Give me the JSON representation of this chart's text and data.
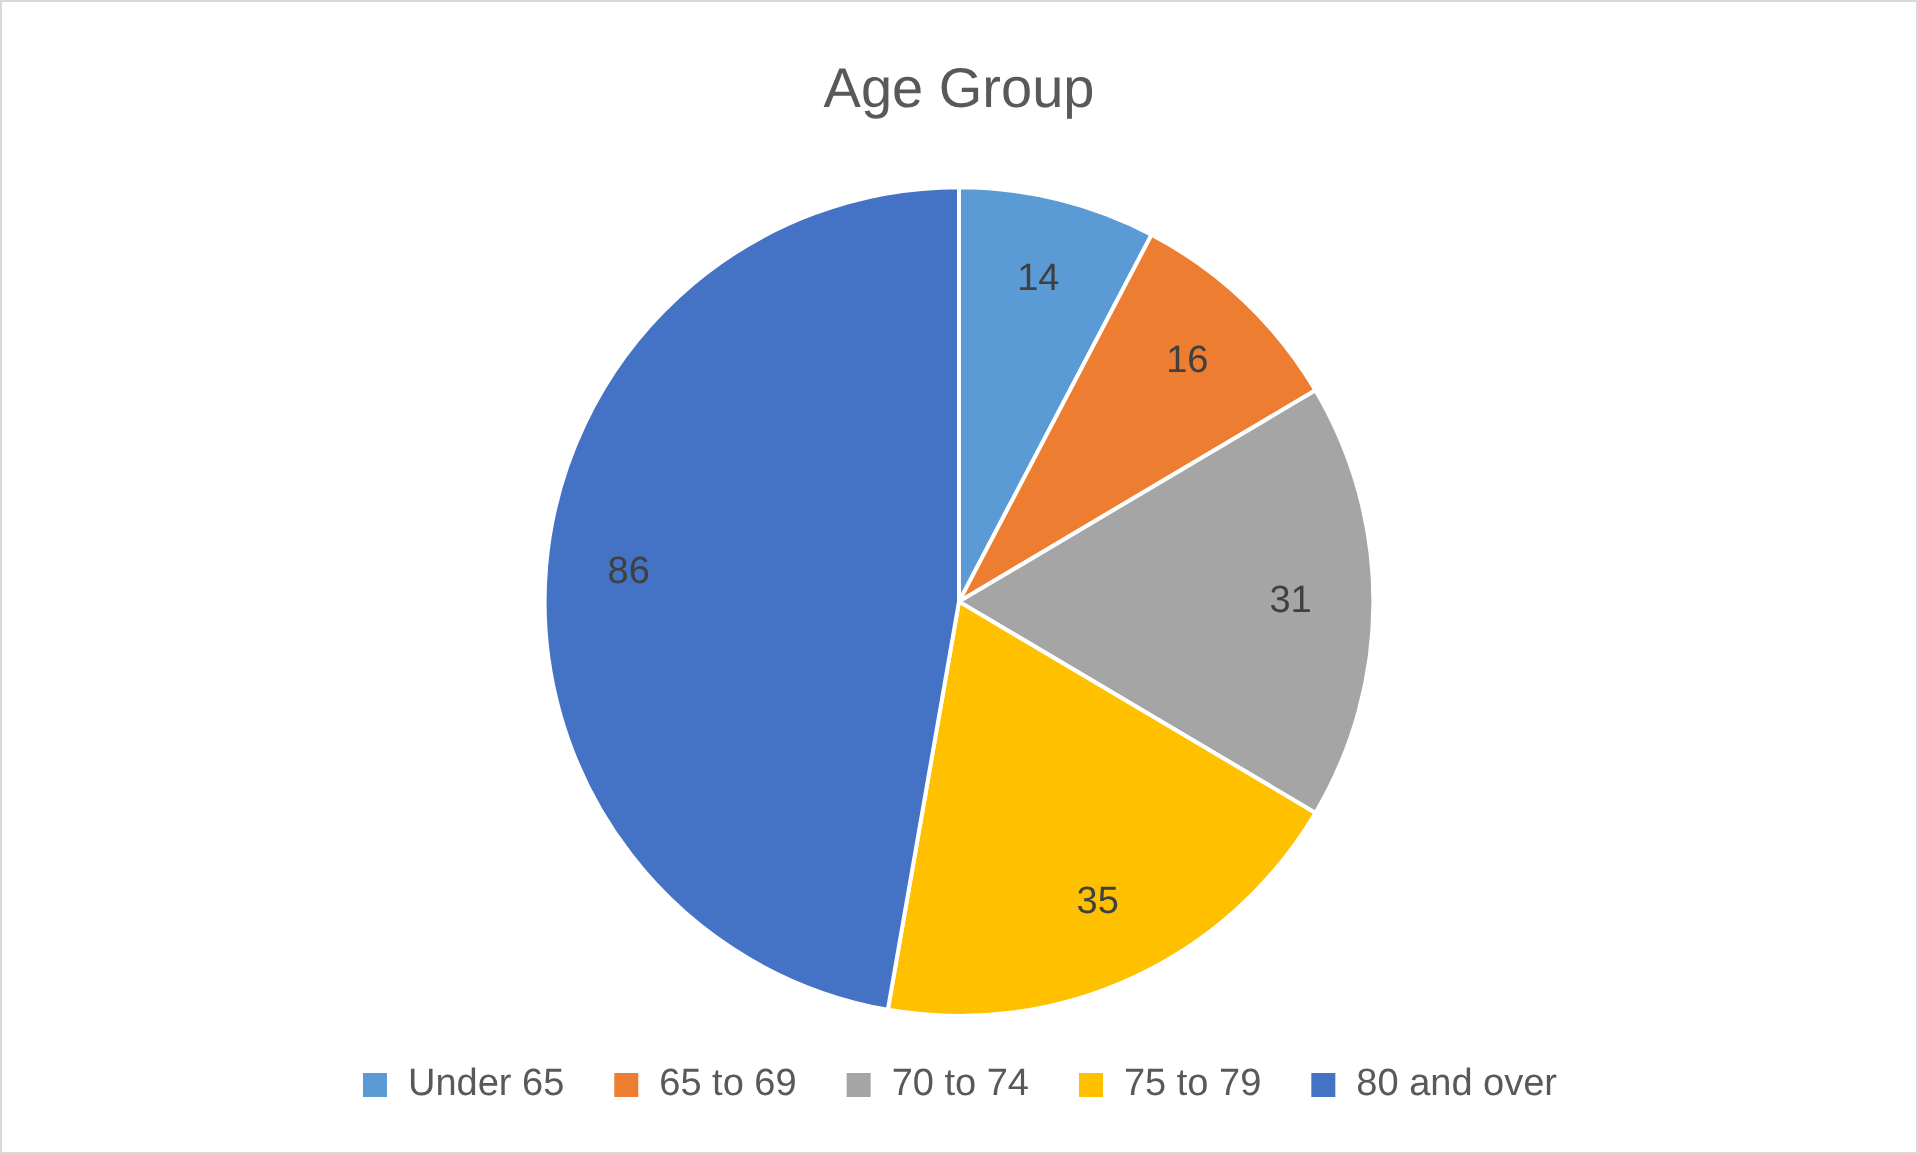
{
  "chart_data": {
    "type": "pie",
    "title": "Age Group",
    "categories": [
      "Under 65",
      "65 to 69",
      "70 to 74",
      "75 to 79",
      "80 and over"
    ],
    "values": [
      14,
      16,
      31,
      35,
      86
    ],
    "colors": [
      "#5b9bd5",
      "#ed7d31",
      "#a5a5a5",
      "#ffc000",
      "#4472c4"
    ],
    "data_labels": true,
    "legend": "bottom"
  }
}
